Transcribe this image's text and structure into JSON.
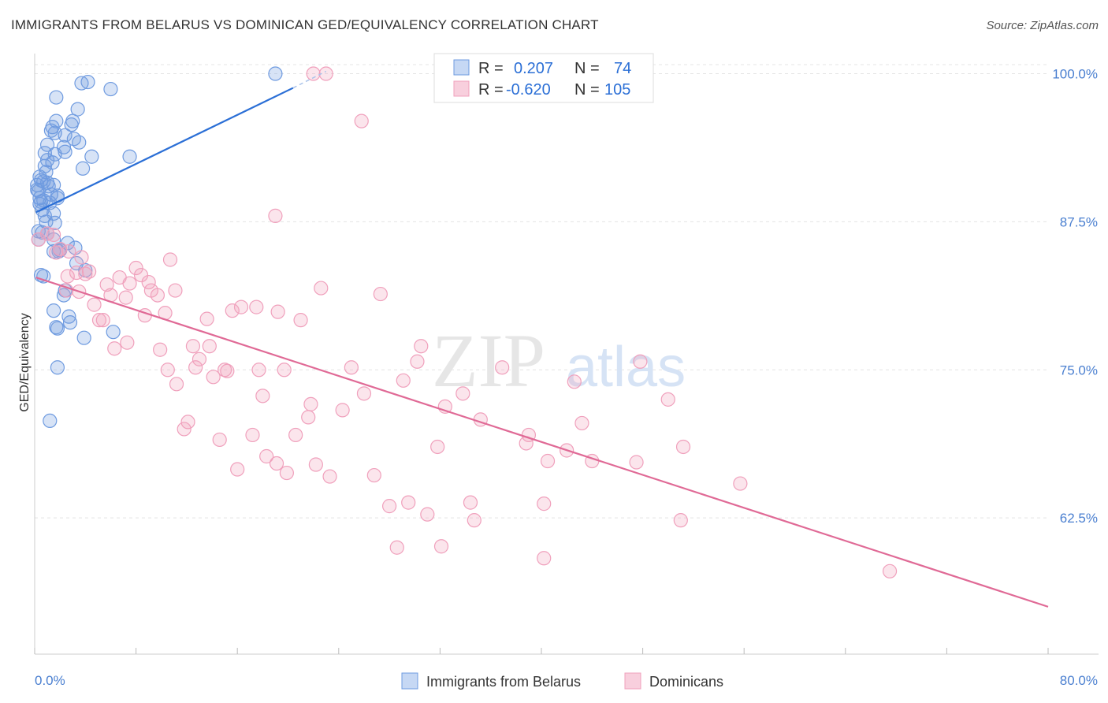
{
  "header": {
    "title": "IMMIGRANTS FROM BELARUS VS DOMINICAN GED/EQUIVALENCY CORRELATION CHART",
    "source": "Source: ZipAtlas.com"
  },
  "watermark": {
    "zip": "ZIP",
    "atlas": "atlas"
  },
  "legend": {
    "rows": [
      {
        "r_label": "R =",
        "r_value": "0.207",
        "n_label": "N =",
        "n_value": "74",
        "color": "#6f9be0"
      },
      {
        "r_label": "R =",
        "r_value": "-0.620",
        "n_label": "N =",
        "n_value": "105",
        "color": "#f0a0bc"
      }
    ]
  },
  "bottom_legend": [
    {
      "label": "Immigrants from Belarus",
      "color": "#6f9be0"
    },
    {
      "label": "Dominicans",
      "color": "#f0a0bc"
    }
  ],
  "chart_data": {
    "type": "scatter",
    "ylabel": "GED/Equivalency",
    "xlim": [
      0,
      80
    ],
    "ylim": [
      51.0,
      100.9
    ],
    "x_tick_labels": [
      "0.0%",
      "80.0%"
    ],
    "y_ticks": [
      62.5,
      75.0,
      87.5,
      100.0
    ],
    "y_tick_labels": [
      "62.5%",
      "75.0%",
      "87.5%",
      "100.0%"
    ],
    "grid": true,
    "series": [
      {
        "name": "Immigrants from Belarus",
        "color": "#6f9be0",
        "line_color": "#2b6fd6",
        "trend": {
          "x0": 0.1,
          "y0": 88.3,
          "x1": 20.4,
          "y1": 98.8,
          "dash_to_x": 23.0,
          "dash_to_y": 100.2
        },
        "points": [
          [
            19.0,
            100.0
          ],
          [
            4.2,
            99.3
          ],
          [
            3.7,
            99.2
          ],
          [
            6.0,
            98.7
          ],
          [
            1.7,
            98.0
          ],
          [
            3.4,
            97.0
          ],
          [
            1.7,
            96.0
          ],
          [
            3.0,
            96.0
          ],
          [
            1.4,
            95.5
          ],
          [
            1.3,
            95.2
          ],
          [
            2.9,
            95.7
          ],
          [
            1.6,
            95.0
          ],
          [
            2.4,
            94.8
          ],
          [
            3.1,
            94.5
          ],
          [
            3.5,
            94.2
          ],
          [
            1.0,
            94.0
          ],
          [
            2.3,
            93.8
          ],
          [
            1.6,
            93.2
          ],
          [
            2.4,
            93.4
          ],
          [
            0.8,
            93.3
          ],
          [
            4.5,
            93.0
          ],
          [
            7.5,
            93.0
          ],
          [
            1.0,
            92.7
          ],
          [
            0.8,
            92.2
          ],
          [
            3.8,
            92.0
          ],
          [
            0.9,
            91.7
          ],
          [
            0.4,
            91.3
          ],
          [
            0.5,
            91.0
          ],
          [
            0.7,
            90.9
          ],
          [
            1.0,
            90.8
          ],
          [
            0.2,
            90.6
          ],
          [
            1.5,
            90.6
          ],
          [
            0.3,
            90.1
          ],
          [
            1.3,
            89.8
          ],
          [
            1.8,
            89.7
          ],
          [
            0.4,
            89.5
          ],
          [
            0.7,
            89.3
          ],
          [
            1.2,
            89.1
          ],
          [
            1.8,
            89.5
          ],
          [
            0.4,
            89.0
          ],
          [
            0.6,
            88.5
          ],
          [
            1.5,
            88.2
          ],
          [
            0.9,
            87.5
          ],
          [
            1.6,
            87.4
          ],
          [
            0.3,
            86.7
          ],
          [
            0.6,
            86.6
          ],
          [
            1.0,
            86.5
          ],
          [
            1.5,
            86.0
          ],
          [
            2.6,
            85.7
          ],
          [
            3.2,
            85.3
          ],
          [
            1.5,
            85.0
          ],
          [
            1.9,
            85.0
          ],
          [
            3.3,
            84.0
          ],
          [
            4.0,
            83.4
          ],
          [
            0.5,
            83.0
          ],
          [
            0.7,
            82.9
          ],
          [
            2.4,
            81.7
          ],
          [
            2.3,
            81.3
          ],
          [
            1.5,
            80.0
          ],
          [
            2.8,
            79.0
          ],
          [
            1.7,
            78.6
          ],
          [
            1.8,
            78.5
          ],
          [
            6.2,
            78.2
          ],
          [
            3.9,
            77.7
          ],
          [
            1.8,
            75.2
          ],
          [
            1.2,
            70.7
          ],
          [
            0.2,
            90.2
          ],
          [
            0.5,
            89.2
          ],
          [
            1.1,
            90.5
          ],
          [
            0.8,
            88.0
          ],
          [
            2.0,
            85.1
          ],
          [
            0.3,
            86.0
          ],
          [
            2.7,
            79.5
          ],
          [
            1.4,
            92.5
          ]
        ]
      },
      {
        "name": "Dominicans",
        "color": "#f0a0bc",
        "line_color": "#e06a96",
        "trend": {
          "x0": 0.1,
          "y0": 82.8,
          "x1": 80.0,
          "y1": 55.0
        },
        "points": [
          [
            22.0,
            100.0
          ],
          [
            23.0,
            100.0
          ],
          [
            25.8,
            96.0
          ],
          [
            19.0,
            88.0
          ],
          [
            0.3,
            86.0
          ],
          [
            1.0,
            86.5
          ],
          [
            1.5,
            86.4
          ],
          [
            2.0,
            85.2
          ],
          [
            2.7,
            85.0
          ],
          [
            1.7,
            84.9
          ],
          [
            10.7,
            84.3
          ],
          [
            3.3,
            83.2
          ],
          [
            4.3,
            83.3
          ],
          [
            8.0,
            83.6
          ],
          [
            8.4,
            83.0
          ],
          [
            4.0,
            83.1
          ],
          [
            6.7,
            82.8
          ],
          [
            2.6,
            82.9
          ],
          [
            9.0,
            82.4
          ],
          [
            7.5,
            82.3
          ],
          [
            5.7,
            82.2
          ],
          [
            3.5,
            81.6
          ],
          [
            9.2,
            81.7
          ],
          [
            11.1,
            81.7
          ],
          [
            22.6,
            81.9
          ],
          [
            27.3,
            81.4
          ],
          [
            6.0,
            81.3
          ],
          [
            7.2,
            81.1
          ],
          [
            9.7,
            81.3
          ],
          [
            4.7,
            80.5
          ],
          [
            16.3,
            80.3
          ],
          [
            17.5,
            80.3
          ],
          [
            15.6,
            80.0
          ],
          [
            19.2,
            79.9
          ],
          [
            10.3,
            79.8
          ],
          [
            8.7,
            79.6
          ],
          [
            5.1,
            79.2
          ],
          [
            5.4,
            79.2
          ],
          [
            13.6,
            79.3
          ],
          [
            21.0,
            79.2
          ],
          [
            7.3,
            77.3
          ],
          [
            6.3,
            76.8
          ],
          [
            12.5,
            77.0
          ],
          [
            13.8,
            77.0
          ],
          [
            30.5,
            77.0
          ],
          [
            9.9,
            76.7
          ],
          [
            30.2,
            75.7
          ],
          [
            13.0,
            75.9
          ],
          [
            47.8,
            75.7
          ],
          [
            12.7,
            75.2
          ],
          [
            15.0,
            75.0
          ],
          [
            15.2,
            74.9
          ],
          [
            17.7,
            75.0
          ],
          [
            19.7,
            75.0
          ],
          [
            25.0,
            75.2
          ],
          [
            36.9,
            75.2
          ],
          [
            10.5,
            75.0
          ],
          [
            14.1,
            74.4
          ],
          [
            11.2,
            73.8
          ],
          [
            29.1,
            74.1
          ],
          [
            42.6,
            74.0
          ],
          [
            26.0,
            73.0
          ],
          [
            33.8,
            73.0
          ],
          [
            18.0,
            72.8
          ],
          [
            50.0,
            72.5
          ],
          [
            21.8,
            72.1
          ],
          [
            32.4,
            71.9
          ],
          [
            24.3,
            71.6
          ],
          [
            21.6,
            71.0
          ],
          [
            35.2,
            70.8
          ],
          [
            12.1,
            70.6
          ],
          [
            43.2,
            70.5
          ],
          [
            11.8,
            70.0
          ],
          [
            20.6,
            69.5
          ],
          [
            17.2,
            69.5
          ],
          [
            39.0,
            69.5
          ],
          [
            14.6,
            69.1
          ],
          [
            38.8,
            68.8
          ],
          [
            31.8,
            68.5
          ],
          [
            51.2,
            68.5
          ],
          [
            42.0,
            68.2
          ],
          [
            18.3,
            67.7
          ],
          [
            40.5,
            67.3
          ],
          [
            44.0,
            67.3
          ],
          [
            47.5,
            67.2
          ],
          [
            19.1,
            67.1
          ],
          [
            22.2,
            67.0
          ],
          [
            16.0,
            66.6
          ],
          [
            19.9,
            66.3
          ],
          [
            23.3,
            66.0
          ],
          [
            26.8,
            66.1
          ],
          [
            55.7,
            65.4
          ],
          [
            29.5,
            63.8
          ],
          [
            28.0,
            63.5
          ],
          [
            34.4,
            63.8
          ],
          [
            40.2,
            63.7
          ],
          [
            31.0,
            62.8
          ],
          [
            34.7,
            62.3
          ],
          [
            51.0,
            62.3
          ],
          [
            28.6,
            60.0
          ],
          [
            32.1,
            60.1
          ],
          [
            40.2,
            59.1
          ],
          [
            67.5,
            58.0
          ],
          [
            2.5,
            81.7
          ],
          [
            3.7,
            84.5
          ]
        ]
      }
    ]
  }
}
